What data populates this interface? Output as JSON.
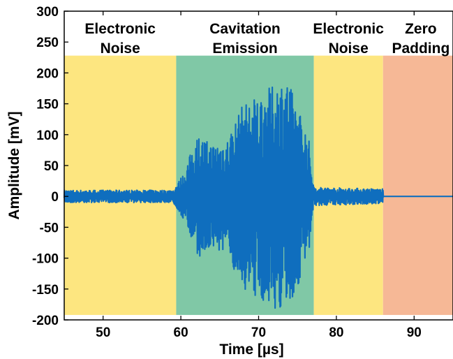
{
  "chart_data": {
    "type": "line",
    "xlabel": "Time [µs]",
    "ylabel": "Amplitude [mV]",
    "xlim": [
      45,
      95
    ],
    "ylim": [
      -200,
      300
    ],
    "xticks": [
      50,
      60,
      70,
      80,
      90
    ],
    "yticks": [
      -200,
      -150,
      -100,
      -50,
      0,
      50,
      100,
      150,
      200,
      250,
      300
    ],
    "grid": false,
    "line_color": "#0f6ebe",
    "regions": [
      {
        "label_lines": [
          "Electronic",
          "Noise"
        ],
        "x_start": 45,
        "x_end": 59.4,
        "y_range": [
          -192,
          228
        ],
        "color": "#fde680"
      },
      {
        "label_lines": [
          "Cavitation",
          "Emission"
        ],
        "x_start": 59.4,
        "x_end": 77.1,
        "y_range": [
          -192,
          228
        ],
        "color": "#80c8a6"
      },
      {
        "label_lines": [
          "Electronic",
          "Noise"
        ],
        "x_start": 77.1,
        "x_end": 86.0,
        "y_range": [
          -192,
          228
        ],
        "color": "#fde680"
      },
      {
        "label_lines": [
          "Zero",
          "Padding"
        ],
        "x_start": 86.0,
        "x_end": 95,
        "y_range": [
          -192,
          228
        ],
        "color": "#f6b896"
      }
    ],
    "series": [
      {
        "signal": "noise-burst-noise-zero",
        "envelope": [
          {
            "x": 45,
            "amp": 10
          },
          {
            "x": 59.0,
            "amp": 10
          },
          {
            "x": 60.5,
            "amp": 40
          },
          {
            "x": 62,
            "amp": 100
          },
          {
            "x": 64,
            "amp": 85
          },
          {
            "x": 66,
            "amp": 95
          },
          {
            "x": 68,
            "amp": 150
          },
          {
            "x": 70,
            "amp": 165
          },
          {
            "x": 72,
            "amp": 180
          },
          {
            "x": 73.5,
            "amp": 195
          },
          {
            "x": 75,
            "amp": 150
          },
          {
            "x": 76.5,
            "amp": 90
          },
          {
            "x": 77.1,
            "amp": 15
          },
          {
            "x": 86.0,
            "amp": 12
          },
          {
            "x": 86.05,
            "amp": 0
          },
          {
            "x": 95,
            "amp": 0
          }
        ]
      }
    ]
  }
}
